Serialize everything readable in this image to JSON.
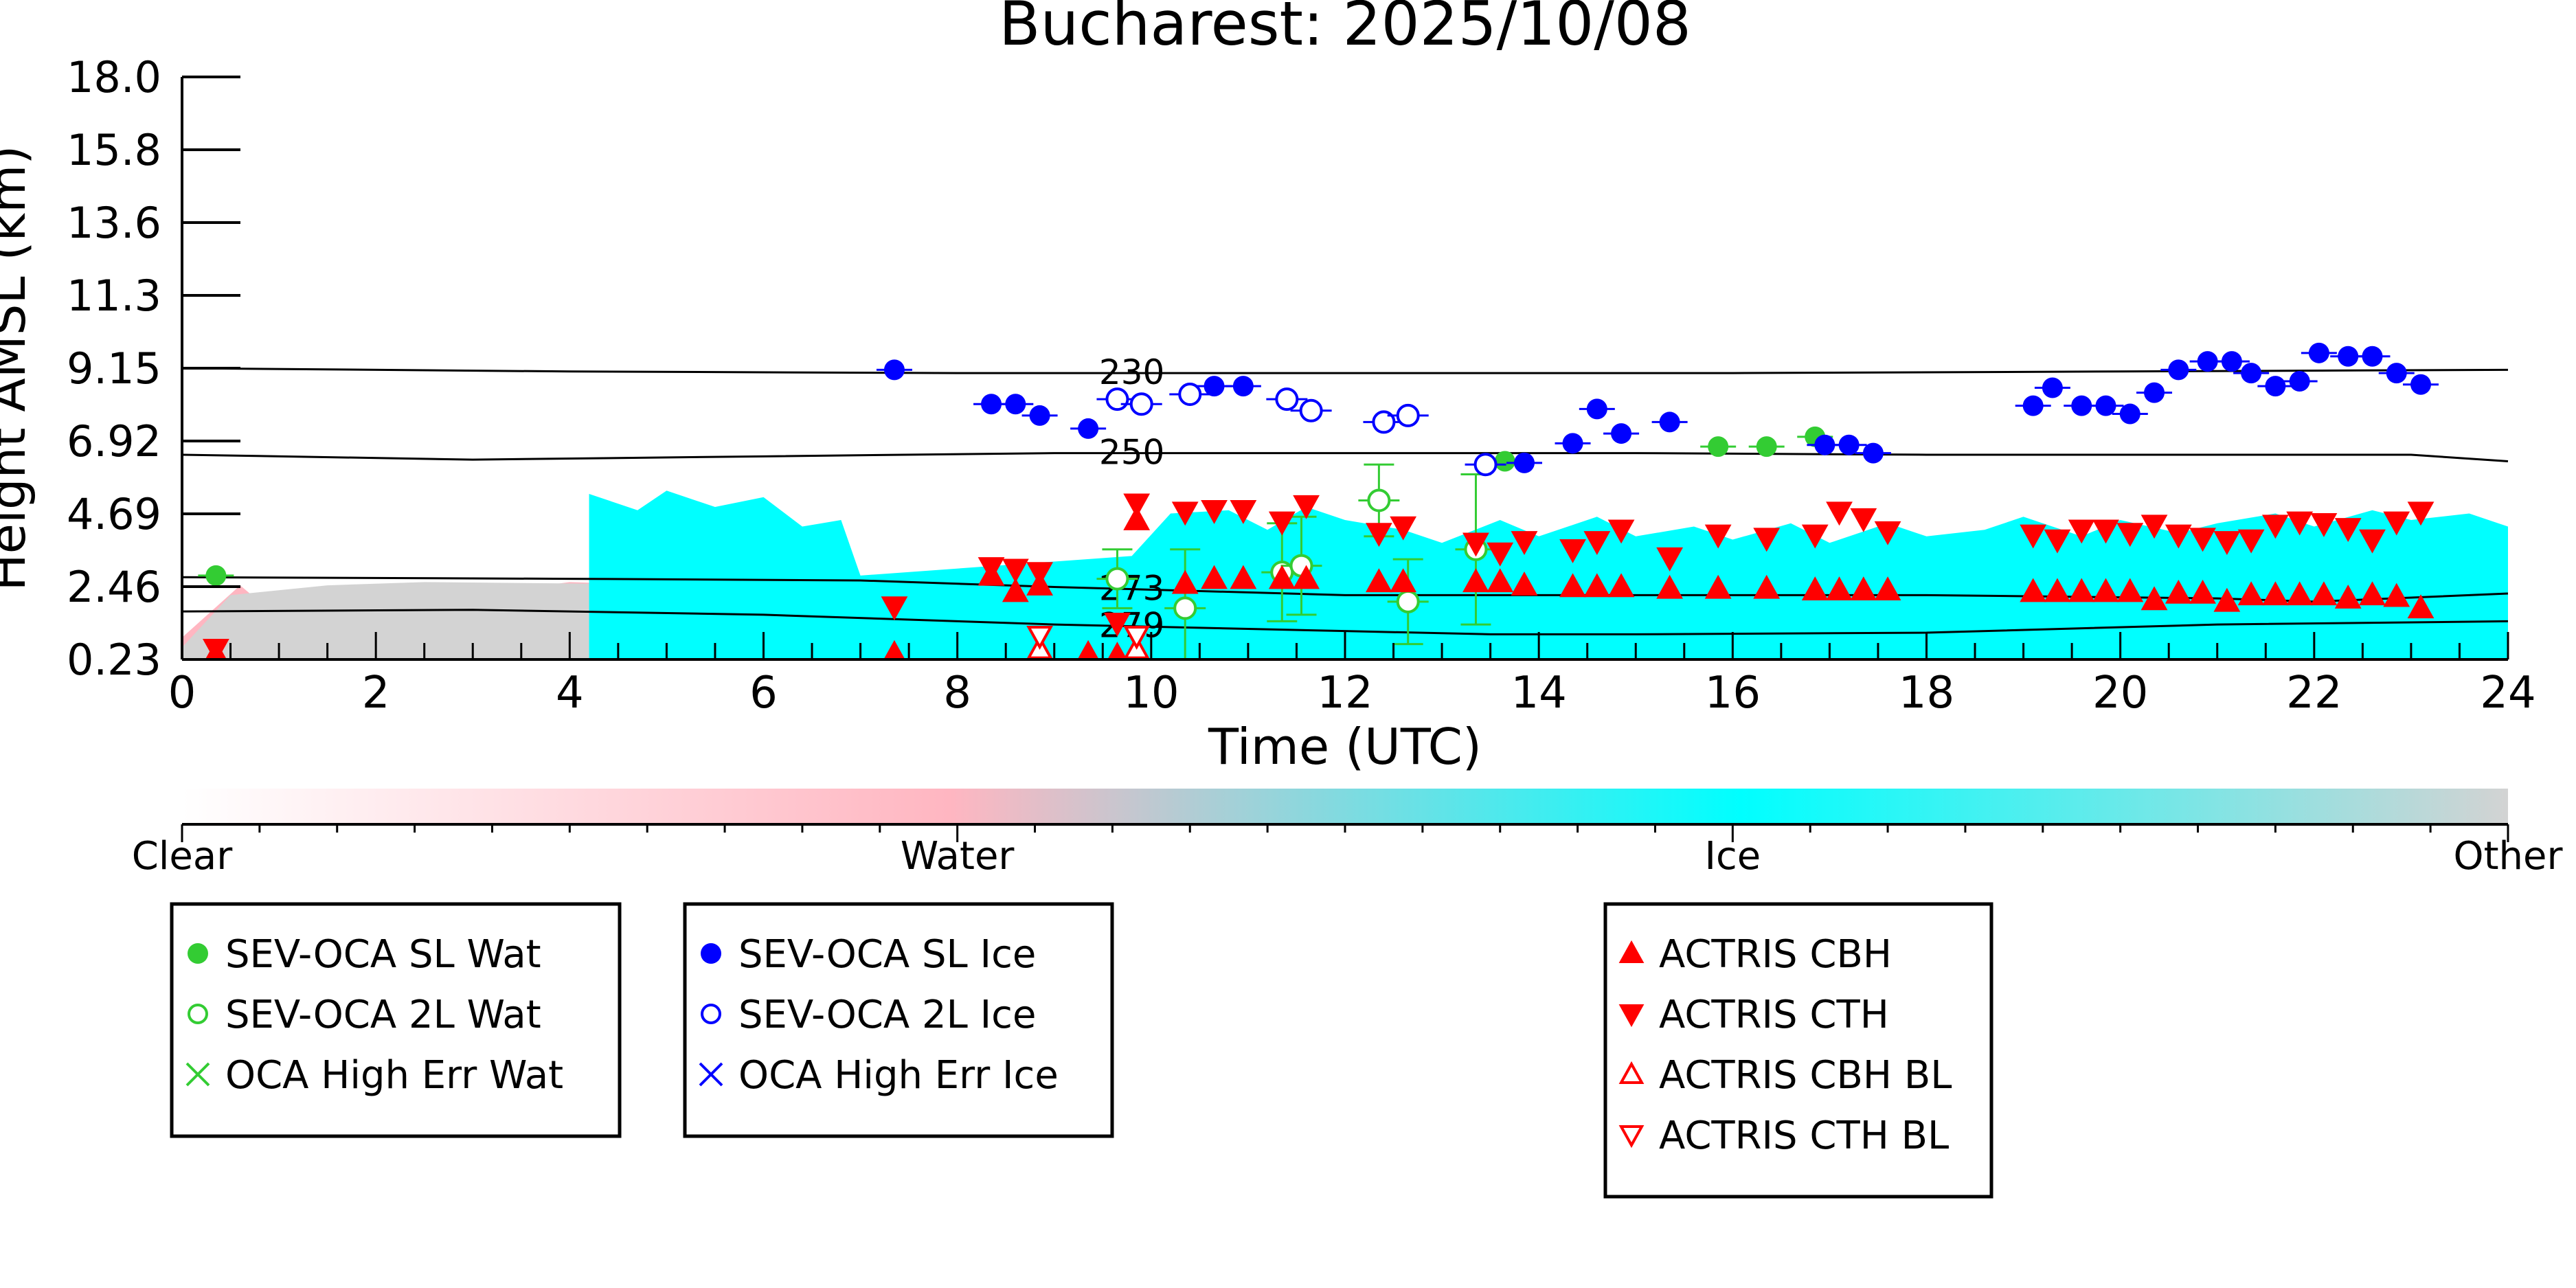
{
  "chart_data": {
    "type": "scatter",
    "title": "Bucharest: 2025/10/08",
    "xlabel": "Time (UTC)",
    "ylabel": "Height AMSL (km)",
    "xlim": [
      0,
      24
    ],
    "ylim": [
      0.23,
      18.0
    ],
    "x_ticks": [
      "0",
      "2",
      "4",
      "6",
      "8",
      "10",
      "12",
      "14",
      "16",
      "18",
      "20",
      "22",
      "24"
    ],
    "y_ticks": [
      "0.23",
      "2.46",
      "4.69",
      "6.92",
      "9.15",
      "11.3",
      "13.6",
      "15.8",
      "18.0"
    ],
    "y_tick_values": [
      0.23,
      2.46,
      4.69,
      6.92,
      9.15,
      11.3,
      13.6,
      15.8,
      18.0
    ],
    "colors": {
      "sl_ice": "#0000ff",
      "twol_ice": "#0000ff",
      "sl_wat": "#33cc33",
      "twol_wat": "#33cc33",
      "actris": "#ff0000",
      "phase_clear": "#ffffff",
      "phase_water": "#ffb6c1",
      "phase_ice": "#00ffff",
      "phase_other": "#d3d3d3"
    },
    "isotherms": [
      {
        "label": "230",
        "label_x": 9.8,
        "points": [
          [
            0,
            9.15
          ],
          [
            4,
            9.05
          ],
          [
            8,
            9.0
          ],
          [
            12,
            9.0
          ],
          [
            16,
            9.0
          ],
          [
            20,
            9.05
          ],
          [
            24,
            9.1
          ]
        ]
      },
      {
        "label": "250",
        "label_x": 9.8,
        "points": [
          [
            0,
            6.5
          ],
          [
            3,
            6.35
          ],
          [
            6,
            6.45
          ],
          [
            9,
            6.55
          ],
          [
            12,
            6.55
          ],
          [
            15,
            6.55
          ],
          [
            18,
            6.5
          ],
          [
            21,
            6.5
          ],
          [
            23,
            6.5
          ],
          [
            24,
            6.3
          ]
        ]
      },
      {
        "label": "273",
        "label_x": 9.8,
        "points": [
          [
            0,
            2.75
          ],
          [
            4,
            2.7
          ],
          [
            7,
            2.65
          ],
          [
            9,
            2.45
          ],
          [
            12,
            2.2
          ],
          [
            15,
            2.2
          ],
          [
            18,
            2.2
          ],
          [
            21,
            2.1
          ],
          [
            22,
            2.0
          ],
          [
            24,
            2.25
          ]
        ]
      },
      {
        "label": "279",
        "label_x": 9.8,
        "points": [
          [
            0,
            1.7
          ],
          [
            3,
            1.75
          ],
          [
            6,
            1.6
          ],
          [
            9,
            1.3
          ],
          [
            12,
            1.1
          ],
          [
            13.5,
            1.0
          ],
          [
            15,
            1.0
          ],
          [
            18,
            1.05
          ],
          [
            21,
            1.3
          ],
          [
            24,
            1.4
          ]
        ]
      }
    ],
    "phase_bands": [
      {
        "phase": "water",
        "color": "#ffb6c1",
        "points": [
          [
            0,
            0.9
          ],
          [
            0.6,
            2.5
          ],
          [
            1.0,
            1.5
          ],
          [
            1.5,
            2.0
          ],
          [
            2,
            1.8
          ],
          [
            3,
            2.2
          ],
          [
            4,
            2.6
          ],
          [
            5,
            2.5
          ],
          [
            6,
            2.6
          ],
          [
            7,
            2.5
          ],
          [
            7.2,
            2.4
          ],
          [
            7.6,
            2.8
          ],
          [
            8.5,
            2.6
          ],
          [
            9.0,
            2.0
          ],
          [
            9.4,
            1.5
          ],
          [
            10,
            1.2
          ],
          [
            12,
            0.8
          ],
          [
            14,
            0.7
          ],
          [
            16,
            0.8
          ],
          [
            18,
            0.9
          ],
          [
            20,
            1.0
          ],
          [
            22,
            1.1
          ],
          [
            24,
            1.2
          ]
        ]
      },
      {
        "phase": "other",
        "color": "#d3d3d3",
        "points": [
          [
            0,
            0.6
          ],
          [
            0.5,
            2.2
          ],
          [
            1.5,
            2.5
          ],
          [
            2.5,
            2.6
          ],
          [
            4.3,
            2.55
          ],
          [
            6,
            2.5
          ],
          [
            7,
            2.45
          ],
          [
            8.5,
            2.5
          ],
          [
            9.5,
            2.45
          ],
          [
            10,
            2.5
          ],
          [
            12,
            2.35
          ],
          [
            14,
            2.2
          ],
          [
            16,
            2.2
          ],
          [
            18,
            2.15
          ],
          [
            20,
            2.1
          ],
          [
            22,
            2.0
          ],
          [
            24,
            2.3
          ]
        ]
      },
      {
        "phase": "ice",
        "color": "#00ffff",
        "points": [
          [
            4.2,
            5.3
          ],
          [
            4.7,
            4.8
          ],
          [
            5.0,
            5.4
          ],
          [
            5.5,
            4.9
          ],
          [
            6.0,
            5.2
          ],
          [
            6.4,
            4.3
          ],
          [
            6.8,
            4.5
          ],
          [
            7.0,
            2.8
          ],
          [
            9.8,
            3.4
          ],
          [
            10.2,
            4.7
          ],
          [
            10.8,
            4.8
          ],
          [
            11.2,
            4.2
          ],
          [
            11.6,
            4.9
          ],
          [
            12.0,
            4.5
          ],
          [
            12.6,
            4.2
          ],
          [
            13.0,
            3.8
          ],
          [
            13.6,
            4.5
          ],
          [
            14.0,
            4.0
          ],
          [
            14.6,
            4.6
          ],
          [
            15.0,
            4.0
          ],
          [
            15.6,
            4.3
          ],
          [
            16.0,
            3.9
          ],
          [
            16.6,
            4.4
          ],
          [
            17.0,
            3.8
          ],
          [
            17.6,
            4.4
          ],
          [
            18.0,
            4.0
          ],
          [
            18.6,
            4.2
          ],
          [
            19.0,
            4.6
          ],
          [
            19.6,
            4.0
          ],
          [
            20.0,
            4.5
          ],
          [
            20.6,
            4.1
          ],
          [
            21.0,
            4.4
          ],
          [
            21.6,
            4.7
          ],
          [
            22.0,
            4.3
          ],
          [
            22.6,
            4.8
          ],
          [
            23.0,
            4.5
          ],
          [
            23.6,
            4.7
          ],
          [
            24,
            4.3
          ]
        ]
      }
    ],
    "series": [
      {
        "name": "SEV-OCA SL Wat",
        "marker": "filled-circle",
        "color": "#33cc33",
        "points": [
          [
            0.35,
            2.8
          ],
          [
            13.65,
            6.3
          ],
          [
            15.85,
            6.75
          ],
          [
            16.35,
            6.75
          ],
          [
            16.85,
            7.05
          ]
        ]
      },
      {
        "name": "SEV-OCA 2L Wat",
        "marker": "open-circle",
        "color": "#33cc33",
        "points": [
          [
            9.65,
            2.7,
            0.9
          ],
          [
            10.35,
            1.8,
            1.8
          ],
          [
            11.35,
            2.9,
            1.5
          ],
          [
            11.55,
            3.1,
            1.5
          ],
          [
            12.35,
            5.1,
            1.1
          ],
          [
            12.65,
            2.0,
            1.3
          ],
          [
            13.35,
            3.6,
            2.3
          ]
        ]
      },
      {
        "name": "SEV-OCA SL Ice",
        "marker": "filled-circle",
        "color": "#0000ff",
        "points": [
          [
            7.35,
            9.1
          ],
          [
            8.35,
            8.05
          ],
          [
            8.6,
            8.05
          ],
          [
            8.85,
            7.7
          ],
          [
            9.35,
            7.3
          ],
          [
            10.65,
            8.6
          ],
          [
            10.95,
            8.6
          ],
          [
            13.85,
            6.25
          ],
          [
            14.35,
            6.85
          ],
          [
            14.6,
            7.9
          ],
          [
            14.85,
            7.15
          ],
          [
            15.35,
            7.5
          ],
          [
            16.95,
            6.8
          ],
          [
            17.2,
            6.8
          ],
          [
            17.45,
            6.55
          ],
          [
            19.1,
            8.0
          ],
          [
            19.3,
            8.55
          ],
          [
            19.6,
            8.0
          ],
          [
            19.85,
            8.0
          ],
          [
            20.1,
            7.75
          ],
          [
            20.35,
            8.4
          ],
          [
            20.6,
            9.1
          ],
          [
            20.9,
            9.35
          ],
          [
            21.15,
            9.35
          ],
          [
            21.35,
            9.0
          ],
          [
            21.6,
            8.6
          ],
          [
            21.85,
            8.75
          ],
          [
            22.05,
            9.6
          ],
          [
            22.35,
            9.5
          ],
          [
            22.6,
            9.5
          ],
          [
            22.85,
            9.0
          ],
          [
            23.1,
            8.65
          ]
        ]
      },
      {
        "name": "SEV-OCA 2L Ice",
        "marker": "open-circle",
        "color": "#0000ff",
        "points": [
          [
            9.65,
            8.2
          ],
          [
            9.9,
            8.05
          ],
          [
            10.4,
            8.35
          ],
          [
            11.4,
            8.2
          ],
          [
            11.65,
            7.85
          ],
          [
            12.4,
            7.5
          ],
          [
            12.65,
            7.7
          ],
          [
            13.45,
            6.2
          ]
        ]
      },
      {
        "name": "OCA High Err Wat",
        "marker": "x",
        "color": "#33cc33",
        "points": []
      },
      {
        "name": "OCA High Err Ice",
        "marker": "x",
        "color": "#0000ff",
        "points": []
      },
      {
        "name": "ACTRIS CBH",
        "marker": "triangle-up",
        "color": "#ff0000",
        "points": [
          [
            0.35,
            0.4
          ],
          [
            7.35,
            0.4
          ],
          [
            8.35,
            2.8
          ],
          [
            8.6,
            2.3
          ],
          [
            8.85,
            2.5
          ],
          [
            9.35,
            0.4
          ],
          [
            9.65,
            0.35
          ],
          [
            9.85,
            4.5
          ],
          [
            10.35,
            2.55
          ],
          [
            10.65,
            2.7
          ],
          [
            10.95,
            2.7
          ],
          [
            11.35,
            2.7
          ],
          [
            11.6,
            2.7
          ],
          [
            12.35,
            2.6
          ],
          [
            12.6,
            2.6
          ],
          [
            13.35,
            2.6
          ],
          [
            13.6,
            2.6
          ],
          [
            13.85,
            2.5
          ],
          [
            14.35,
            2.45
          ],
          [
            14.6,
            2.45
          ],
          [
            14.85,
            2.45
          ],
          [
            15.35,
            2.4
          ],
          [
            15.85,
            2.4
          ],
          [
            16.35,
            2.4
          ],
          [
            16.85,
            2.35
          ],
          [
            17.1,
            2.35
          ],
          [
            17.35,
            2.35
          ],
          [
            17.6,
            2.35
          ],
          [
            19.1,
            2.3
          ],
          [
            19.35,
            2.3
          ],
          [
            19.6,
            2.3
          ],
          [
            19.85,
            2.3
          ],
          [
            20.1,
            2.3
          ],
          [
            20.35,
            2.05
          ],
          [
            20.6,
            2.25
          ],
          [
            20.85,
            2.25
          ],
          [
            21.1,
            2.0
          ],
          [
            21.35,
            2.2
          ],
          [
            21.6,
            2.2
          ],
          [
            21.85,
            2.2
          ],
          [
            22.1,
            2.2
          ],
          [
            22.35,
            2.1
          ],
          [
            22.6,
            2.2
          ],
          [
            22.85,
            2.15
          ],
          [
            23.1,
            1.8
          ]
        ]
      },
      {
        "name": "ACTRIS CTH",
        "marker": "triangle-down",
        "color": "#ff0000",
        "points": [
          [
            0.35,
            0.55
          ],
          [
            7.35,
            1.85
          ],
          [
            8.35,
            3.05
          ],
          [
            8.6,
            3.0
          ],
          [
            8.85,
            2.9
          ],
          [
            9.65,
            1.35
          ],
          [
            9.85,
            5.0
          ],
          [
            10.35,
            4.75
          ],
          [
            10.65,
            4.8
          ],
          [
            10.95,
            4.8
          ],
          [
            11.35,
            4.45
          ],
          [
            11.6,
            4.95
          ],
          [
            12.35,
            4.1
          ],
          [
            12.6,
            4.3
          ],
          [
            13.35,
            3.8
          ],
          [
            13.6,
            3.5
          ],
          [
            13.85,
            3.85
          ],
          [
            14.35,
            3.6
          ],
          [
            14.6,
            3.85
          ],
          [
            14.85,
            4.2
          ],
          [
            15.35,
            3.35
          ],
          [
            15.85,
            4.05
          ],
          [
            16.35,
            3.95
          ],
          [
            16.85,
            4.05
          ],
          [
            17.1,
            4.75
          ],
          [
            17.35,
            4.55
          ],
          [
            17.6,
            4.15
          ],
          [
            19.1,
            4.05
          ],
          [
            19.35,
            3.9
          ],
          [
            19.6,
            4.2
          ],
          [
            19.85,
            4.2
          ],
          [
            20.1,
            4.1
          ],
          [
            20.35,
            4.35
          ],
          [
            20.6,
            4.05
          ],
          [
            20.85,
            3.95
          ],
          [
            21.1,
            3.85
          ],
          [
            21.35,
            3.9
          ],
          [
            21.6,
            4.35
          ],
          [
            21.85,
            4.45
          ],
          [
            22.1,
            4.4
          ],
          [
            22.35,
            4.25
          ],
          [
            22.6,
            3.9
          ],
          [
            22.85,
            4.45
          ],
          [
            23.1,
            4.75
          ]
        ]
      },
      {
        "name": "ACTRIS CBH BL",
        "marker": "open-triangle-up",
        "color": "#ff0000",
        "points": [
          [
            8.85,
            0.55
          ],
          [
            9.85,
            0.55
          ]
        ]
      },
      {
        "name": "ACTRIS CTH BL",
        "marker": "open-triangle-down",
        "color": "#ff0000",
        "points": [
          [
            8.85,
            0.95
          ],
          [
            9.85,
            0.95
          ]
        ]
      }
    ],
    "colorbar": {
      "labels": [
        "Clear",
        "Water",
        "Ice",
        "Other"
      ],
      "stops": [
        "#ffffff",
        "#ffb6c1",
        "#00ffff",
        "#d3d3d3"
      ]
    },
    "legends": [
      [
        "SEV-OCA SL Wat",
        "SEV-OCA 2L Wat",
        "OCA High Err Wat"
      ],
      [
        "SEV-OCA SL Ice",
        "SEV-OCA 2L Ice",
        "OCA High Err Ice"
      ],
      [
        "ACTRIS CBH",
        "ACTRIS CTH",
        "ACTRIS CBH BL",
        "ACTRIS CTH BL"
      ]
    ]
  }
}
